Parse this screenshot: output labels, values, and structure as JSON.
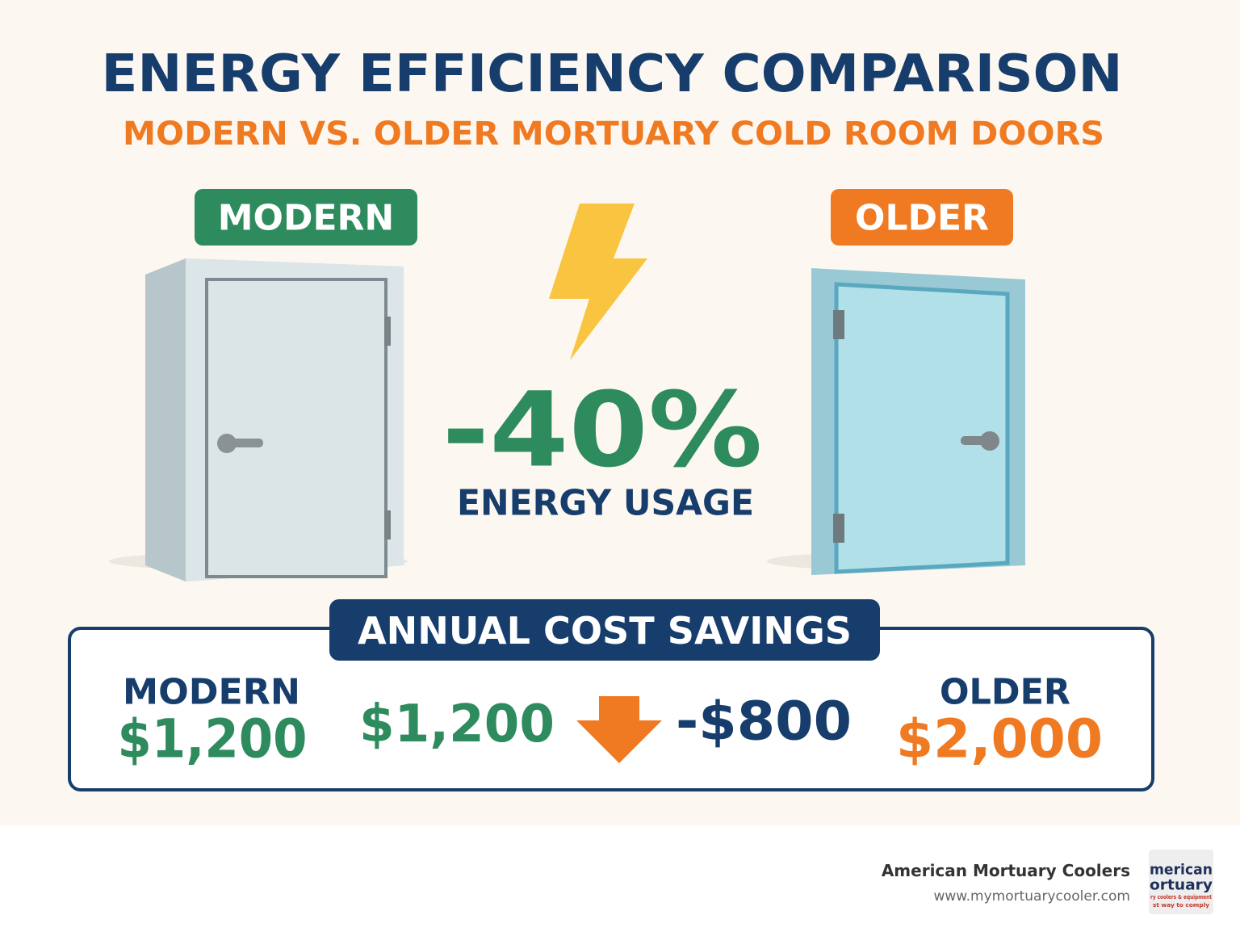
{
  "header": {
    "title": "ENERGY EFFICIENCY COMPARISON",
    "subtitle": "MODERN VS. OLDER MORTUARY COLD ROOM DOORS"
  },
  "doors": [
    {
      "label": "MODERN"
    },
    {
      "label": "OLDER"
    }
  ],
  "center": {
    "value": "-40%",
    "caption": "ENERGY USAGE"
  },
  "savings": {
    "title": "ANNUAL COST SAVINGS",
    "modern": {
      "label": "MODERN",
      "amount": "$1,200"
    },
    "difference": {
      "from": "$1,200",
      "change": "-$800"
    },
    "older": {
      "label": "OLDER",
      "amount": "$2,000"
    }
  },
  "footer": {
    "company": "American Mortuary Coolers",
    "url": "www.mymortuarycooler.com",
    "logo": [
      "merican",
      "ortuary",
      "ry coolers & equipment",
      "st way to comply"
    ]
  }
}
